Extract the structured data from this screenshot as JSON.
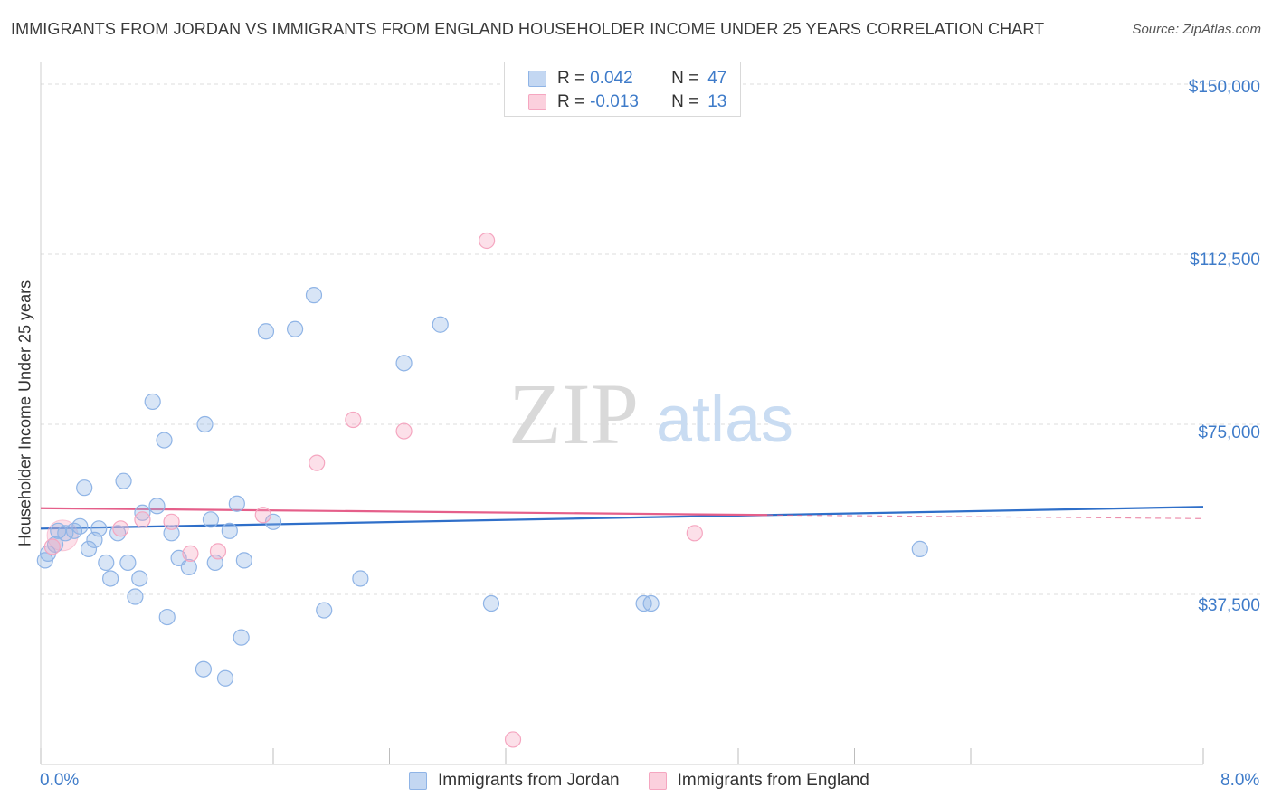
{
  "chart_data": {
    "type": "scatter",
    "title": "IMMIGRANTS FROM JORDAN VS IMMIGRANTS FROM ENGLAND HOUSEHOLDER INCOME UNDER 25 YEARS CORRELATION CHART",
    "source": "Source: ZipAtlas.com",
    "xlabel": "",
    "ylabel": "Householder Income Under 25 years",
    "xlim": [
      0,
      8
    ],
    "ylim": [
      0,
      153000
    ],
    "x_tick_labels": [
      "0.0%",
      "8.0%"
    ],
    "y_ticks": [
      {
        "value": 37500,
        "label": "$37,500"
      },
      {
        "value": 75000,
        "label": "$75,000"
      },
      {
        "value": 112500,
        "label": "$112,500"
      },
      {
        "value": 150000,
        "label": "$150,000"
      }
    ],
    "watermark": {
      "zip": "ZIP",
      "atlas": "atlas"
    },
    "legend": {
      "r_key": "R =",
      "n_key": "N =",
      "entries": [
        {
          "r": "0.042",
          "n": "47"
        },
        {
          "r": "-0.013",
          "n": "13"
        }
      ]
    },
    "series": [
      {
        "name": "Immigrants from Jordan",
        "color": "#8fb4e6",
        "line_color": "#2f6fc9",
        "trend": {
          "x": [
            0.0,
            8.0
          ],
          "y": [
            52000,
            56800
          ]
        },
        "points": [
          [
            0.03,
            45000
          ],
          [
            0.05,
            46500
          ],
          [
            0.1,
            48500
          ],
          [
            0.12,
            51500
          ],
          [
            0.17,
            51000
          ],
          [
            0.23,
            51500
          ],
          [
            0.27,
            52500
          ],
          [
            0.3,
            61000
          ],
          [
            0.33,
            47500
          ],
          [
            0.37,
            49500
          ],
          [
            0.4,
            52000
          ],
          [
            0.45,
            44500
          ],
          [
            0.48,
            41000
          ],
          [
            0.53,
            51000
          ],
          [
            0.57,
            62500
          ],
          [
            0.6,
            44500
          ],
          [
            0.65,
            37000
          ],
          [
            0.68,
            41000
          ],
          [
            0.7,
            55500
          ],
          [
            0.77,
            80000
          ],
          [
            0.8,
            57000
          ],
          [
            0.85,
            71500
          ],
          [
            0.87,
            32500
          ],
          [
            0.9,
            51000
          ],
          [
            0.95,
            45500
          ],
          [
            1.02,
            43500
          ],
          [
            1.12,
            21000
          ],
          [
            1.13,
            75000
          ],
          [
            1.17,
            54000
          ],
          [
            1.2,
            44500
          ],
          [
            1.27,
            19000
          ],
          [
            1.3,
            51500
          ],
          [
            1.35,
            57500
          ],
          [
            1.38,
            28000
          ],
          [
            1.4,
            45000
          ],
          [
            1.55,
            95500
          ],
          [
            1.6,
            53500
          ],
          [
            1.75,
            96000
          ],
          [
            1.88,
            103500
          ],
          [
            1.95,
            34000
          ],
          [
            2.2,
            41000
          ],
          [
            2.5,
            88500
          ],
          [
            2.75,
            97000
          ],
          [
            3.1,
            35500
          ],
          [
            4.15,
            35500
          ],
          [
            4.2,
            35500
          ],
          [
            6.05,
            47500
          ]
        ]
      },
      {
        "name": "Immigrants from England",
        "color": "#f5a6c0",
        "line_color": "#e55f8a",
        "trend": {
          "x": [
            0.0,
            5.0
          ],
          "y": [
            56500,
            55000
          ]
        },
        "dashed_extension": {
          "x": [
            5.0,
            8.0
          ],
          "y": [
            55000,
            54200
          ]
        },
        "points": [
          [
            0.08,
            48000
          ],
          [
            0.55,
            52000
          ],
          [
            0.7,
            54000
          ],
          [
            1.22,
            47000
          ],
          [
            1.03,
            46500
          ],
          [
            1.53,
            55000
          ],
          [
            1.9,
            66500
          ],
          [
            2.15,
            76000
          ],
          [
            2.5,
            73500
          ],
          [
            3.07,
            115500
          ],
          [
            3.25,
            5500
          ],
          [
            4.5,
            51000
          ],
          [
            0.9,
            53500
          ]
        ]
      }
    ]
  }
}
